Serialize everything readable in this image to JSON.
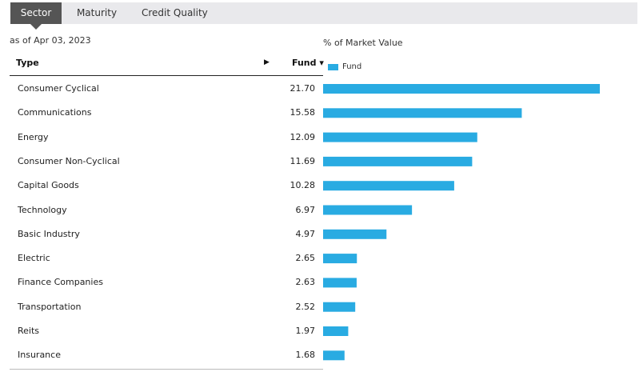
{
  "tabs": [
    {
      "label": "Sector",
      "active": true
    },
    {
      "label": "Maturity",
      "active": false
    },
    {
      "label": "Credit Quality",
      "active": false
    }
  ],
  "as_of": "as of Apr 03, 2023",
  "table": {
    "header_type": "Type",
    "header_fund": "Fund ▾"
  },
  "colors": {
    "bar": "#29abe2",
    "active_tab": "#555555",
    "tab_bg": "#e9e9ec"
  },
  "chart_data": {
    "type": "bar",
    "orientation": "horizontal",
    "title": "% of Market Value",
    "legend": {
      "placement": "top-left",
      "entries": [
        "Fund"
      ]
    },
    "series": [
      {
        "name": "Fund"
      }
    ],
    "categories": [
      "Consumer Cyclical",
      "Communications",
      "Energy",
      "Consumer Non-Cyclical",
      "Capital Goods",
      "Technology",
      "Basic Industry",
      "Electric",
      "Finance Companies",
      "Transportation",
      "Reits",
      "Insurance"
    ],
    "values": [
      21.7,
      15.58,
      12.09,
      11.69,
      10.28,
      6.97,
      4.97,
      2.65,
      2.63,
      2.52,
      1.97,
      1.68
    ],
    "value_labels": [
      "21.70",
      "15.58",
      "12.09",
      "11.69",
      "10.28",
      "6.97",
      "4.97",
      "2.65",
      "2.63",
      "2.52",
      "1.97",
      "1.68"
    ],
    "grid": false
  }
}
